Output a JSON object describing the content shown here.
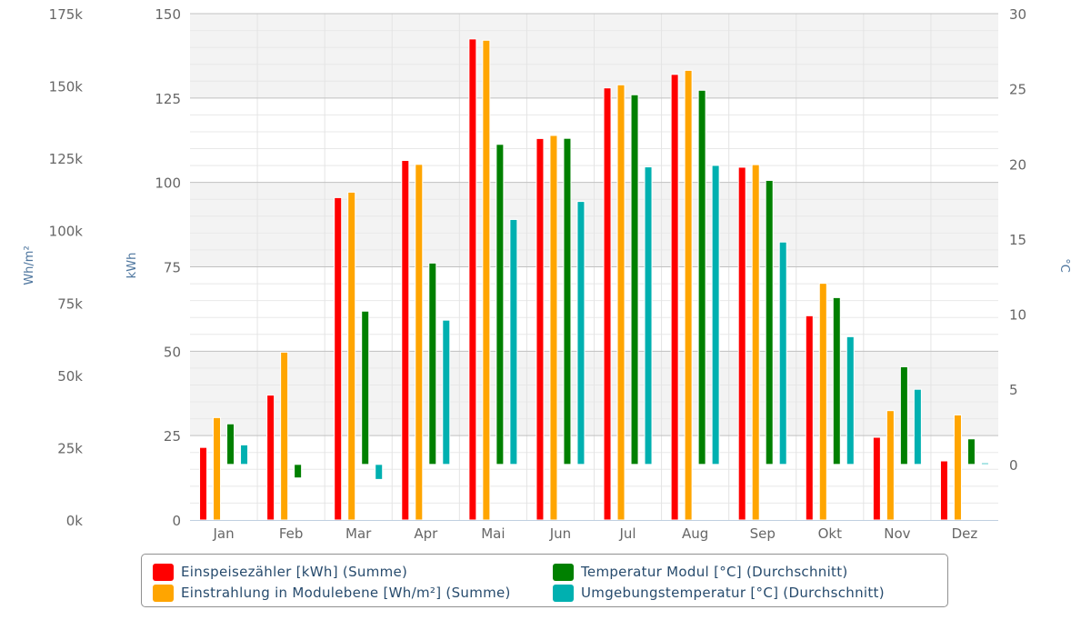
{
  "chart_data": {
    "type": "bar",
    "categories": [
      "Jan",
      "Feb",
      "Mar",
      "Apr",
      "Mai",
      "Jun",
      "Jul",
      "Aug",
      "Sep",
      "Okt",
      "Nov",
      "Dez"
    ],
    "axes": {
      "left_outer": {
        "label": "Wh/m²",
        "min": 0,
        "max": 175000,
        "ticks": [
          "0k",
          "25k",
          "50k",
          "75k",
          "100k",
          "125k",
          "150k",
          "175k"
        ]
      },
      "left_inner": {
        "label": "kWh",
        "min": 0,
        "max": 150,
        "ticks": [
          "0",
          "25",
          "50",
          "75",
          "100",
          "125",
          "150"
        ]
      },
      "right": {
        "label": "°C",
        "min": -3.7,
        "max": 30,
        "ticks": [
          "0",
          "5",
          "10",
          "15",
          "20",
          "25",
          "30"
        ]
      }
    },
    "grid": true,
    "legend_position": "bottom",
    "series": [
      {
        "name": "Einspeisezähler [kWh] (Summe)",
        "color": "#ff0000",
        "axis": "left_inner",
        "values": [
          21.5,
          37,
          95.5,
          106.5,
          142.5,
          113,
          128,
          132,
          104.5,
          60.5,
          24.5,
          17.5
        ]
      },
      {
        "name": "Einstrahlung in Modulebene [Wh/m²] (Summe)",
        "color": "#ffa500",
        "axis": "left_outer",
        "values": [
          35400,
          58000,
          113300,
          122900,
          165800,
          132900,
          150400,
          155400,
          122800,
          81800,
          37800,
          36300
        ]
      },
      {
        "name": "Temperatur Modul [°C] (Durchschnitt)",
        "color": "#008000",
        "axis": "right",
        "values": [
          2.7,
          -0.9,
          10.2,
          13.4,
          21.3,
          21.7,
          24.6,
          24.9,
          18.9,
          11.1,
          6.5,
          1.7
        ]
      },
      {
        "name": "Umgebungstemperatur [°C] (Durchschnitt)",
        "color": "#00b0b0",
        "axis": "right",
        "values": [
          1.3,
          0.0,
          -1.0,
          9.6,
          16.3,
          17.5,
          19.8,
          19.9,
          14.8,
          8.5,
          5.0,
          0.1
        ]
      }
    ]
  },
  "legend": {
    "items": [
      {
        "label": "Einspeisezähler [kWh] (Summe)",
        "color": "#ff0000"
      },
      {
        "label": "Temperatur Modul [°C] (Durchschnitt)",
        "color": "#008000"
      },
      {
        "label": "Einstrahlung in Modulebene [Wh/m²] (Summe)",
        "color": "#ffa500"
      },
      {
        "label": "Umgebungstemperatur [°C] (Durchschnitt)",
        "color": "#00b0b0"
      }
    ]
  }
}
